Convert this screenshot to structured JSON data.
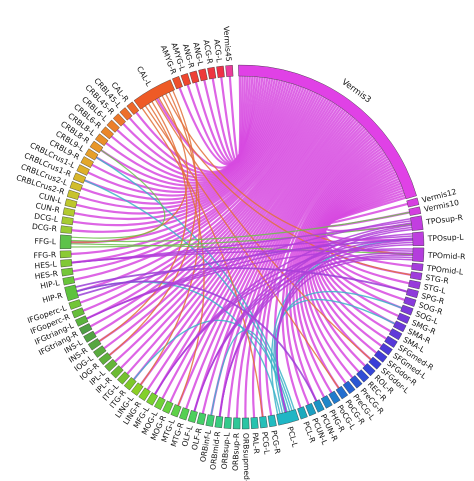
{
  "regions": [
    {
      "label": "Vermis3",
      "color": "#e041e6",
      "size": 34
    },
    {
      "label": "Vermis12",
      "color": "#d63fe0",
      "size": 1
    },
    {
      "label": "Vermis10",
      "color": "#d33fdf",
      "size": 1
    },
    {
      "label": "TPOsup-R",
      "color": "#c23ee0",
      "size": 2
    },
    {
      "label": "TPOsup-L",
      "color": "#bd3edf",
      "size": 2
    },
    {
      "label": "TPOmid-R",
      "color": "#b43ddd",
      "size": 2
    },
    {
      "label": "TPOmid-L",
      "color": "#a53cdc",
      "size": 1
    },
    {
      "label": "STG-R",
      "color": "#9f3cdc",
      "size": 1
    },
    {
      "label": "STG-L",
      "color": "#983bdb",
      "size": 1
    },
    {
      "label": "SPG-R",
      "color": "#8f3bdb",
      "size": 1
    },
    {
      "label": "SOG-R",
      "color": "#883adb",
      "size": 1
    },
    {
      "label": "SOG-L",
      "color": "#7e3ada",
      "size": 1
    },
    {
      "label": "SMG-R",
      "color": "#7439da",
      "size": 1
    },
    {
      "label": "SMA-R",
      "color": "#6a39da",
      "size": 1
    },
    {
      "label": "SMA-L",
      "color": "#6039d9",
      "size": 1
    },
    {
      "label": "SFGmed-R",
      "color": "#5639d9",
      "size": 1
    },
    {
      "label": "SFGmed-L",
      "color": "#4c3ad8",
      "size": 1
    },
    {
      "label": "SFGdor-R",
      "color": "#423bd8",
      "size": 1
    },
    {
      "label": "SFGdor-L",
      "color": "#3a3fd7",
      "size": 1
    },
    {
      "label": "ROL-R",
      "color": "#3545d6",
      "size": 1
    },
    {
      "label": "REC-R",
      "color": "#304dd5",
      "size": 1
    },
    {
      "label": "PreCG-R",
      "color": "#2b57d3",
      "size": 1
    },
    {
      "label": "PreCG-L",
      "color": "#2762d1",
      "size": 1
    },
    {
      "label": "PoCG-R",
      "color": "#246ecf",
      "size": 1
    },
    {
      "label": "PoCG-L",
      "color": "#217acc",
      "size": 1
    },
    {
      "label": "PHG-R",
      "color": "#1f87c9",
      "size": 1
    },
    {
      "label": "PCUN-R",
      "color": "#1d93c5",
      "size": 1
    },
    {
      "label": "PCUN-L",
      "color": "#1c9fc1",
      "size": 1
    },
    {
      "label": "PCL-R",
      "color": "#1caabd",
      "size": 1
    },
    {
      "label": "PCL-L",
      "color": "#1fb6c5",
      "size": 3
    },
    {
      "label": "PCG-R",
      "color": "#21bbc0",
      "size": 1
    },
    {
      "label": "PCG-L",
      "color": "#24bfb8",
      "size": 1
    },
    {
      "label": "PAL-R",
      "color": "#27c2ae",
      "size": 1
    },
    {
      "label": "ORBsupmed-R",
      "color": "#2bc5a3",
      "size": 1
    },
    {
      "label": "ORBsup-R",
      "color": "#2fc797",
      "size": 1
    },
    {
      "label": "ORBsup-L",
      "color": "#34c98b",
      "size": 1
    },
    {
      "label": "ORBmid-R",
      "color": "#39cb7f",
      "size": 1
    },
    {
      "label": "ORBinf-L",
      "color": "#3fcd73",
      "size": 1
    },
    {
      "label": "OLF-R",
      "color": "#46ce67",
      "size": 1
    },
    {
      "label": "OLF-L",
      "color": "#4dcf5c",
      "size": 1
    },
    {
      "label": "MTG-R",
      "color": "#55d052",
      "size": 1
    },
    {
      "label": "MTG-L",
      "color": "#5ed148",
      "size": 1
    },
    {
      "label": "MOG-R",
      "color": "#67d13f",
      "size": 1
    },
    {
      "label": "MOG-L",
      "color": "#70d137",
      "size": 1
    },
    {
      "label": "MFG-L",
      "color": "#79d130",
      "size": 1
    },
    {
      "label": "LING-R",
      "color": "#82d02a",
      "size": 1
    },
    {
      "label": "LING-L",
      "color": "#8bcf25",
      "size": 1
    },
    {
      "label": "ITG-R",
      "color": "#7ec72a",
      "size": 1
    },
    {
      "label": "ITG-L",
      "color": "#74c130",
      "size": 1
    },
    {
      "label": "IPL-R",
      "color": "#6cbb34",
      "size": 1
    },
    {
      "label": "IPL-L",
      "color": "#65b538",
      "size": 1
    },
    {
      "label": "IOG-R",
      "color": "#5fb03b",
      "size": 1
    },
    {
      "label": "IOG-L",
      "color": "#5aab3e",
      "size": 1
    },
    {
      "label": "INS-R",
      "color": "#56a640",
      "size": 1
    },
    {
      "label": "INS-L",
      "color": "#52a242",
      "size": 1
    },
    {
      "label": "IFGtriang-R",
      "color": "#4f9e44",
      "size": 1
    },
    {
      "label": "IFGtriang-L",
      "color": "#5ab33e",
      "size": 1
    },
    {
      "label": "IFGoperc-R",
      "color": "#66be3a",
      "size": 1
    },
    {
      "label": "IFGoperc-L",
      "color": "#72c537",
      "size": 1
    },
    {
      "label": "HIP-R",
      "color": "#5dc23d",
      "size": 2
    },
    {
      "label": "HIP-L",
      "color": "#68c43b",
      "size": 1
    },
    {
      "label": "HES-R",
      "color": "#74c639",
      "size": 1
    },
    {
      "label": "HES-L",
      "color": "#80c837",
      "size": 1
    },
    {
      "label": "FFG-R",
      "color": "#8bca35",
      "size": 1
    },
    {
      "label": "FFG-L",
      "color": "#5ec24a",
      "size": 2
    },
    {
      "label": "DCG-R",
      "color": "#9acb33",
      "size": 1
    },
    {
      "label": "DCG-L",
      "color": "#a6cb31",
      "size": 1
    },
    {
      "label": "CUN-R",
      "color": "#b2ca2f",
      "size": 1
    },
    {
      "label": "CUN-L",
      "color": "#bdc72d",
      "size": 1
    },
    {
      "label": "CRBLCrus2-R",
      "color": "#c8c32c",
      "size": 1
    },
    {
      "label": "CRBLCrus2-L",
      "color": "#d1bd2b",
      "size": 1
    },
    {
      "label": "CRBLCrus1-R",
      "color": "#d8b62a",
      "size": 1
    },
    {
      "label": "CRBLCrus1-L",
      "color": "#deaf2a",
      "size": 1
    },
    {
      "label": "CRBL9-R",
      "color": "#e3a72a",
      "size": 1
    },
    {
      "label": "CRBL9-L",
      "color": "#e69f2a",
      "size": 1
    },
    {
      "label": "CRBL8-R",
      "color": "#e8972a",
      "size": 1
    },
    {
      "label": "CRBL8-L",
      "color": "#ea8f2a",
      "size": 1
    },
    {
      "label": "CRBL6-R",
      "color": "#eb872a",
      "size": 1
    },
    {
      "label": "CRBL6-L",
      "color": "#ec7f2a",
      "size": 1
    },
    {
      "label": "CRBL45-R",
      "color": "#ec772a",
      "size": 1
    },
    {
      "label": "CRBL45-L",
      "color": "#ed6f2a",
      "size": 1
    },
    {
      "label": "CAL-R",
      "color": "#ed672a",
      "size": 1
    },
    {
      "label": "CAL-L",
      "color": "#ee5a26",
      "size": 6
    },
    {
      "label": "AMYG-R",
      "color": "#ee4f2b",
      "size": 1
    },
    {
      "label": "AMYG-L",
      "color": "#ee472f",
      "size": 1
    },
    {
      "label": "ANG-R",
      "color": "#ee4034",
      "size": 1
    },
    {
      "label": "ANG-L",
      "color": "#ee3a3a",
      "size": 1
    },
    {
      "label": "ACG-R",
      "color": "#ee3540",
      "size": 1
    },
    {
      "label": "ACG-L",
      "color": "#ee3147",
      "size": 1
    },
    {
      "label": "Vermis45",
      "color": "#ea3c9c",
      "size": 1
    }
  ]
}
